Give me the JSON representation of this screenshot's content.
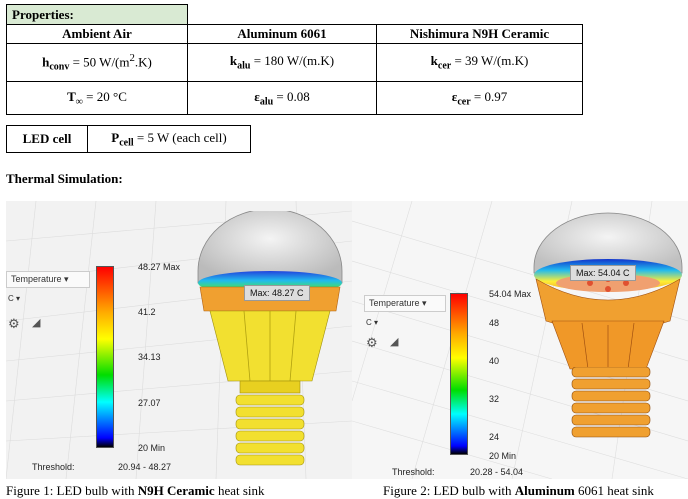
{
  "properties": {
    "heading": "Properties:",
    "columns": [
      "Ambient Air",
      "Aluminum 6061",
      "Nishimura N9H Ceramic"
    ],
    "h_conv": {
      "sym": "h",
      "sub": "conv",
      "val": " = 50 W/(m",
      "sup": "2",
      "tail": ".K)"
    },
    "k_alu": {
      "sym": "k",
      "sub": "alu",
      "val": " = 180 W/(m.K)"
    },
    "k_cer": {
      "sym": "k",
      "sub": "cer",
      "val": " = 39 W/(m.K)"
    },
    "t_inf": {
      "sym": "T",
      "sub": "∞",
      "val": " = 20 °C"
    },
    "e_alu": {
      "sym": "ε",
      "sub": "alu",
      "val": " = 0.08"
    },
    "e_cer": {
      "sym": "ε",
      "sub": "cer",
      "val": " = 0.97"
    }
  },
  "led": {
    "label": "LED cell",
    "sym": "P",
    "sub": "cell",
    "val": " = 5 W (each cell)"
  },
  "thermal_title": "Thermal Simulation:",
  "figure1": {
    "dropdown": "Temperature",
    "unit": "C",
    "ticks": [
      "48.27 Max",
      "41.2",
      "34.13",
      "27.07",
      "20 Min"
    ],
    "max_label": "Max: 48.27 C",
    "threshold_label": "Threshold:",
    "threshold_range": "20.94 - 48.27",
    "caption_pre": "Figure 1: LED bulb with ",
    "caption_bold": "N9H Ceramic",
    "caption_post": " heat sink"
  },
  "figure2": {
    "dropdown": "Temperature",
    "unit": "C",
    "ticks": [
      "54.04 Max",
      "48",
      "40",
      "32",
      "24",
      "20 Min"
    ],
    "max_label": "Max: 54.04 C",
    "threshold_label": "Threshold:",
    "threshold_range": "20.28 - 54.04",
    "caption_pre": "Figure 2: LED bulb with ",
    "caption_bold": "Aluminum",
    "caption_post": " 6061 heat sink"
  },
  "colors": {
    "header_bg": "#d9ead3",
    "heatsink_orange": "#f0a030",
    "heatsink_yellow": "#f2e030"
  }
}
